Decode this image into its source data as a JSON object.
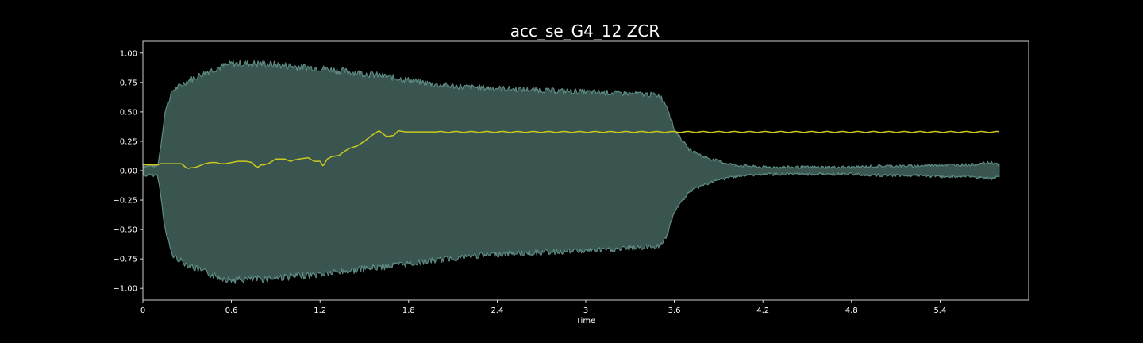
{
  "chart_data": {
    "type": "line",
    "title": "acc_se_G4_12 ZCR",
    "xlabel": "Time",
    "ylabel": "",
    "xlim": [
      0,
      6.0
    ],
    "ylim": [
      -1.1,
      1.1
    ],
    "x_ticks": [
      "0",
      "0.6",
      "1.2",
      "1.8",
      "2.4",
      "3",
      "3.6",
      "4.2",
      "4.8",
      "5.4"
    ],
    "x_tick_values": [
      0,
      0.6,
      1.2,
      1.8,
      2.4,
      3.0,
      3.6,
      4.2,
      4.8,
      5.4
    ],
    "y_ticks": [
      "1.00",
      "0.75",
      "0.50",
      "0.25",
      "0.00",
      "−0.25",
      "−0.50",
      "−0.75",
      "−1.00"
    ],
    "y_tick_values": [
      1.0,
      0.75,
      0.5,
      0.25,
      0.0,
      -0.25,
      -0.5,
      -0.75,
      -1.0
    ],
    "grid": false,
    "colors": {
      "background": "#000000",
      "waveform_fill": "#3a5550",
      "waveform_edge": "#5d8a82",
      "zcr_line": "#c8c81e",
      "axis": "#ffffff"
    },
    "series": [
      {
        "kind": "waveform_envelope",
        "x": [
          0,
          0.1,
          0.12,
          0.15,
          0.2,
          0.3,
          0.45,
          0.6,
          0.8,
          1.0,
          1.2,
          1.4,
          1.6,
          1.8,
          2.0,
          2.2,
          2.4,
          2.6,
          2.8,
          3.0,
          3.2,
          3.4,
          3.5,
          3.55,
          3.6,
          3.7,
          3.8,
          3.9,
          4.0,
          4.2,
          4.4,
          4.6,
          4.8,
          5.0,
          5.2,
          5.4,
          5.6,
          5.75,
          5.8
        ],
        "upper": [
          0.04,
          0.04,
          0.2,
          0.5,
          0.68,
          0.76,
          0.85,
          0.91,
          0.91,
          0.89,
          0.87,
          0.84,
          0.81,
          0.77,
          0.73,
          0.71,
          0.7,
          0.69,
          0.68,
          0.67,
          0.66,
          0.65,
          0.64,
          0.55,
          0.35,
          0.18,
          0.12,
          0.08,
          0.05,
          0.03,
          0.03,
          0.03,
          0.03,
          0.04,
          0.04,
          0.05,
          0.05,
          0.07,
          0.05
        ],
        "lower": [
          -0.04,
          -0.04,
          -0.2,
          -0.5,
          -0.72,
          -0.8,
          -0.88,
          -0.93,
          -0.92,
          -0.9,
          -0.88,
          -0.85,
          -0.82,
          -0.79,
          -0.76,
          -0.73,
          -0.71,
          -0.7,
          -0.69,
          -0.68,
          -0.67,
          -0.65,
          -0.64,
          -0.55,
          -0.35,
          -0.18,
          -0.12,
          -0.08,
          -0.05,
          -0.03,
          -0.03,
          -0.03,
          -0.03,
          -0.04,
          -0.04,
          -0.05,
          -0.05,
          -0.07,
          -0.05
        ]
      },
      {
        "kind": "zcr_line",
        "x": [
          0,
          0.1,
          0.12,
          0.16,
          0.26,
          0.3,
          0.36,
          0.42,
          0.46,
          0.5,
          0.52,
          0.56,
          0.64,
          0.7,
          0.74,
          0.76,
          0.78,
          0.8,
          0.82,
          0.85,
          0.9,
          0.93,
          0.96,
          1.0,
          1.02,
          1.06,
          1.12,
          1.16,
          1.2,
          1.22,
          1.25,
          1.28,
          1.33,
          1.36,
          1.4,
          1.45,
          1.5,
          1.55,
          1.6,
          1.62,
          1.65,
          1.7,
          1.73,
          1.78,
          1.82,
          1.9,
          2.0,
          2.2,
          2.4,
          2.6,
          2.8,
          3.0,
          3.2,
          3.4,
          3.6,
          3.8,
          4.0,
          4.2,
          4.4,
          4.6,
          4.8,
          5.0,
          5.2,
          5.4,
          5.6,
          5.8
        ],
        "y": [
          0.05,
          0.05,
          0.06,
          0.06,
          0.06,
          0.02,
          0.03,
          0.06,
          0.07,
          0.07,
          0.06,
          0.06,
          0.08,
          0.08,
          0.07,
          0.04,
          0.03,
          0.05,
          0.05,
          0.06,
          0.1,
          0.1,
          0.1,
          0.08,
          0.09,
          0.1,
          0.11,
          0.08,
          0.08,
          0.04,
          0.1,
          0.12,
          0.13,
          0.16,
          0.19,
          0.21,
          0.25,
          0.3,
          0.34,
          0.32,
          0.29,
          0.3,
          0.34,
          0.33,
          0.33,
          0.33,
          0.33,
          0.33,
          0.33,
          0.33,
          0.33,
          0.33,
          0.33,
          0.33,
          0.33,
          0.33,
          0.33,
          0.33,
          0.33,
          0.33,
          0.33,
          0.33,
          0.33,
          0.33,
          0.33,
          0.33
        ]
      }
    ]
  }
}
